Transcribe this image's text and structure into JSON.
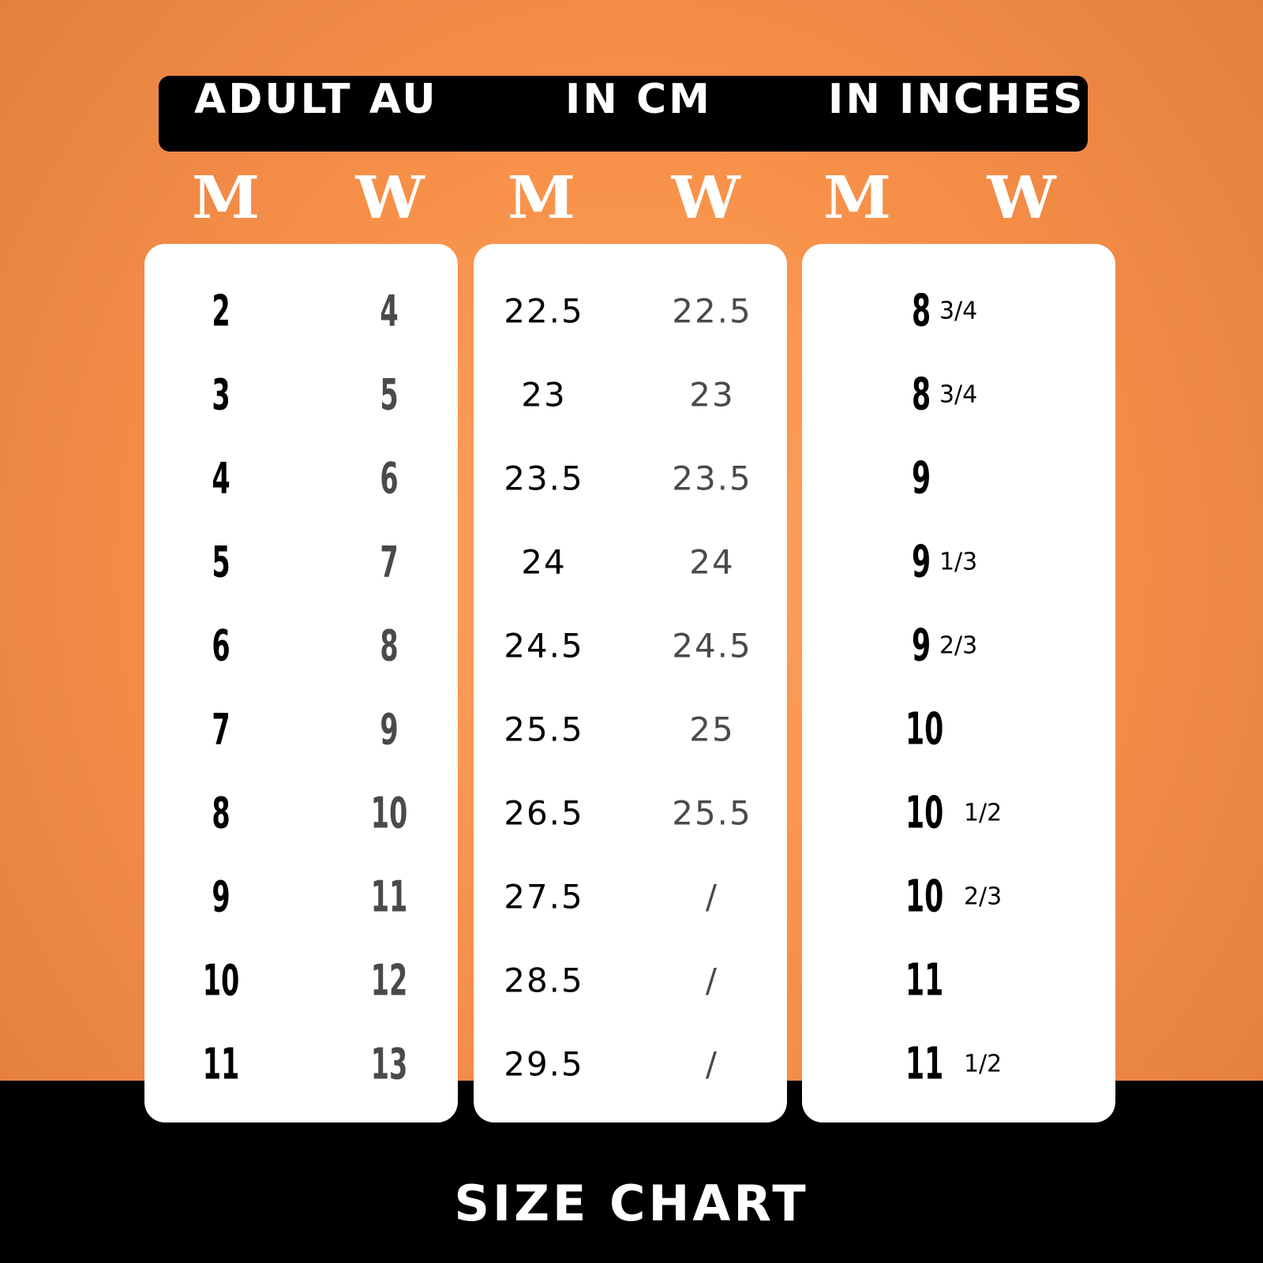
{
  "header": {
    "group1": "ADULT  AU",
    "group2": "IN CM",
    "group3": "IN INCHES"
  },
  "subheaders": [
    "M",
    "W",
    "M",
    "W",
    "M",
    "W"
  ],
  "au": {
    "m": [
      "2",
      "3",
      "4",
      "5",
      "6",
      "7",
      "8",
      "9",
      "10",
      "11"
    ],
    "w": [
      "4",
      "5",
      "6",
      "7",
      "8",
      "9",
      "10",
      "11",
      "12",
      "13"
    ]
  },
  "cm": {
    "m": [
      "22.5",
      "23",
      "23.5",
      "24",
      "24.5",
      "25.5",
      "26.5",
      "27.5",
      "28.5",
      "29.5"
    ],
    "w": [
      "22.5",
      "23",
      "23.5",
      "24",
      "24.5",
      "25",
      "25.5",
      "/",
      "/",
      "/"
    ]
  },
  "inches": [
    {
      "whole": "8",
      "frac": "3/4"
    },
    {
      "whole": "8",
      "frac": "3/4"
    },
    {
      "whole": "9",
      "frac": ""
    },
    {
      "whole": "9",
      "frac": "1/3"
    },
    {
      "whole": "9",
      "frac": "2/3"
    },
    {
      "whole": "10",
      "frac": ""
    },
    {
      "whole": "10",
      "frac": "1/2"
    },
    {
      "whole": "10",
      "frac": "2/3"
    },
    {
      "whole": "11",
      "frac": ""
    },
    {
      "whole": "11",
      "frac": "1/2"
    }
  ],
  "footer": {
    "title": "SIZE CHART"
  },
  "colors": {
    "accent": "#f79049",
    "dark": "#000000",
    "secondary_text": "#4a4a4a"
  }
}
